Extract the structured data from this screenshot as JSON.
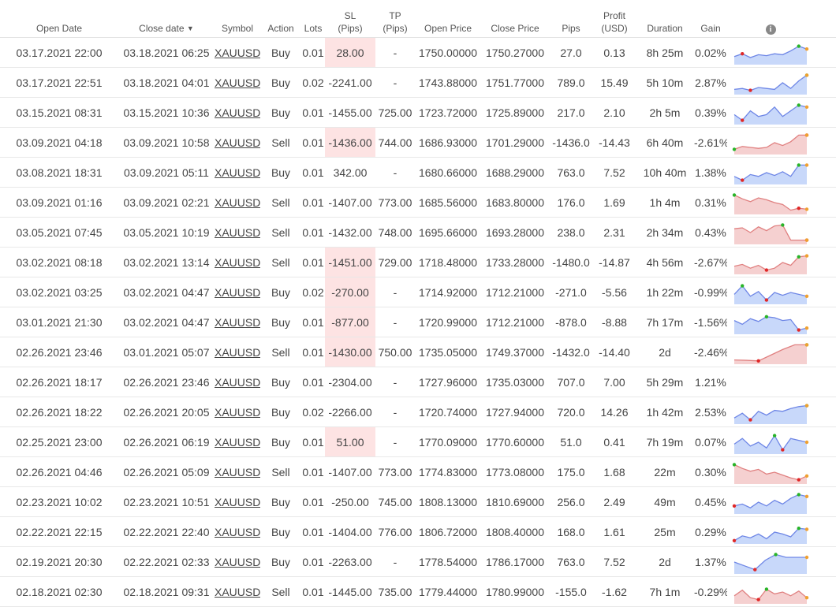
{
  "headers": {
    "open_date": "Open Date",
    "close_date": "Close date",
    "close_date_sort": "▼",
    "symbol": "Symbol",
    "action": "Action",
    "lots": "Lots",
    "sl_1": "SL",
    "sl_2": "(Pips)",
    "tp_1": "TP",
    "tp_2": "(Pips)",
    "open_price": "Open Price",
    "close_price": "Close Price",
    "pips": "Pips",
    "profit_1": "Profit",
    "profit_2": "(USD)",
    "duration": "Duration",
    "gain": "Gain",
    "info_icon": "i"
  },
  "colors": {
    "positive": "#28a028",
    "negative": "#e0403a",
    "sl_highlight": "#fde3e3",
    "buy_fill": "#c8d8fa",
    "buy_line": "#6e86e6",
    "sell_fill": "#f5d0d0",
    "sell_line": "#e08080",
    "max_dot": "#28b428",
    "min_dot": "#e02828",
    "end_dot": "#f0a030",
    "comment_icon": "#aaaaaa"
  },
  "rows": [
    {
      "open_date": "03.17.2021 22:00",
      "close_date": "03.18.2021 06:25",
      "symbol": "XAUUSD",
      "action": "Buy",
      "lots": "0.01",
      "sl": "28.00",
      "sl_hl": true,
      "tp": "-",
      "open_price": "1750.00000",
      "close_price": "1750.27000",
      "pips": "27.0",
      "profit": "0.13",
      "duration": "8h 25m",
      "gain": "0.02%",
      "sign": "pos",
      "spark": [
        30,
        45,
        25,
        40,
        35,
        45,
        40,
        60,
        85,
        70
      ],
      "spark_max": 8,
      "spark_min": 1,
      "comment": true
    },
    {
      "open_date": "03.17.2021 22:51",
      "close_date": "03.18.2021 04:01",
      "symbol": "XAUUSD",
      "action": "Buy",
      "lots": "0.02",
      "sl": "-2241.00",
      "sl_hl": false,
      "tp": "-",
      "open_price": "1743.88000",
      "close_price": "1751.77000",
      "pips": "789.0",
      "profit": "15.49",
      "duration": "5h 10m",
      "gain": "2.87%",
      "sign": "pos",
      "spark": [
        15,
        20,
        10,
        25,
        20,
        15,
        50,
        20,
        60,
        90
      ],
      "spark_max": 9,
      "spark_min": 2,
      "comment": false
    },
    {
      "open_date": "03.15.2021 08:31",
      "close_date": "03.15.2021 10:36",
      "symbol": "XAUUSD",
      "action": "Buy",
      "lots": "0.01",
      "sl": "-1455.00",
      "sl_hl": false,
      "tp": "725.00",
      "open_price": "1723.72000",
      "close_price": "1725.89000",
      "pips": "217.0",
      "profit": "2.10",
      "duration": "2h 5m",
      "gain": "0.39%",
      "sign": "pos",
      "spark": [
        40,
        10,
        60,
        30,
        40,
        80,
        30,
        60,
        90,
        80
      ],
      "spark_max": 8,
      "spark_min": 1,
      "comment": false
    },
    {
      "open_date": "03.09.2021 04:18",
      "close_date": "03.09.2021 10:58",
      "symbol": "XAUUSD",
      "action": "Sell",
      "lots": "0.01",
      "sl": "-1436.00",
      "sl_hl": true,
      "tp": "744.00",
      "open_price": "1686.93000",
      "close_price": "1701.29000",
      "pips": "-1436.0",
      "profit": "-14.43",
      "duration": "6h 40m",
      "gain": "-2.61%",
      "sign": "neg",
      "spark": [
        15,
        30,
        25,
        20,
        25,
        50,
        35,
        55,
        90,
        90
      ],
      "spark_max": 0,
      "spark_min": 9,
      "comment": true
    },
    {
      "open_date": "03.08.2021 18:31",
      "close_date": "03.09.2021 05:11",
      "symbol": "XAUUSD",
      "action": "Buy",
      "lots": "0.01",
      "sl": "342.00",
      "sl_hl": false,
      "tp": "-",
      "open_price": "1680.66000",
      "close_price": "1688.29000",
      "pips": "763.0",
      "profit": "7.52",
      "duration": "10h 40m",
      "gain": "1.38%",
      "sign": "pos",
      "spark": [
        30,
        10,
        40,
        30,
        50,
        35,
        55,
        30,
        90,
        90
      ],
      "spark_max": 8,
      "spark_min": 1,
      "comment": false
    },
    {
      "open_date": "03.09.2021 01:16",
      "close_date": "03.09.2021 02:21",
      "symbol": "XAUUSD",
      "action": "Sell",
      "lots": "0.01",
      "sl": "-1407.00",
      "sl_hl": false,
      "tp": "773.00",
      "open_price": "1685.56000",
      "close_price": "1683.80000",
      "pips": "176.0",
      "profit": "1.69",
      "duration": "1h 4m",
      "gain": "0.31%",
      "sign": "pos",
      "spark": [
        90,
        70,
        55,
        75,
        65,
        50,
        40,
        10,
        20,
        15
      ],
      "spark_max": 0,
      "spark_min": 8,
      "comment": false
    },
    {
      "open_date": "03.05.2021 07:45",
      "close_date": "03.05.2021 10:19",
      "symbol": "XAUUSD",
      "action": "Sell",
      "lots": "0.01",
      "sl": "-1432.00",
      "sl_hl": false,
      "tp": "748.00",
      "open_price": "1695.66000",
      "close_price": "1693.28000",
      "pips": "238.0",
      "profit": "2.31",
      "duration": "2h 34m",
      "gain": "0.43%",
      "sign": "pos",
      "spark": [
        70,
        75,
        50,
        80,
        60,
        85,
        90,
        10,
        10,
        10
      ],
      "spark_max": 6,
      "spark_min": 9,
      "comment": false
    },
    {
      "open_date": "03.02.2021 08:18",
      "close_date": "03.02.2021 13:14",
      "symbol": "XAUUSD",
      "action": "Sell",
      "lots": "0.01",
      "sl": "-1451.00",
      "sl_hl": true,
      "tp": "729.00",
      "open_price": "1718.48000",
      "close_price": "1733.28000",
      "pips": "-1480.0",
      "profit": "-14.87",
      "duration": "4h 56m",
      "gain": "-2.67%",
      "sign": "neg",
      "spark": [
        30,
        40,
        20,
        35,
        10,
        20,
        50,
        35,
        80,
        85
      ],
      "spark_max": 8,
      "spark_min": 4,
      "comment": true
    },
    {
      "open_date": "03.02.2021 03:25",
      "close_date": "03.02.2021 04:47",
      "symbol": "XAUUSD",
      "action": "Buy",
      "lots": "0.02",
      "sl": "-270.00",
      "sl_hl": true,
      "tp": "-",
      "open_price": "1714.92000",
      "close_price": "1712.21000",
      "pips": "-271.0",
      "profit": "-5.56",
      "duration": "1h 22m",
      "gain": "-0.99%",
      "sign": "neg",
      "spark": [
        40,
        85,
        30,
        55,
        10,
        50,
        35,
        50,
        40,
        30
      ],
      "spark_max": 1,
      "spark_min": 4,
      "comment": true
    },
    {
      "open_date": "03.01.2021 21:30",
      "close_date": "03.02.2021 04:47",
      "symbol": "XAUUSD",
      "action": "Buy",
      "lots": "0.01",
      "sl": "-877.00",
      "sl_hl": true,
      "tp": "-",
      "open_price": "1720.99000",
      "close_price": "1712.21000",
      "pips": "-878.0",
      "profit": "-8.88",
      "duration": "7h 17m",
      "gain": "-1.56%",
      "sign": "neg",
      "spark": [
        60,
        40,
        70,
        55,
        80,
        75,
        60,
        65,
        10,
        20
      ],
      "spark_max": 4,
      "spark_min": 8,
      "comment": true
    },
    {
      "open_date": "02.26.2021 23:46",
      "close_date": "03.01.2021 05:07",
      "symbol": "XAUUSD",
      "action": "Sell",
      "lots": "0.01",
      "sl": "-1430.00",
      "sl_hl": true,
      "tp": "750.00",
      "open_price": "1735.05000",
      "close_price": "1749.37000",
      "pips": "-1432.0",
      "profit": "-14.40",
      "duration": "2d",
      "gain": "-2.46%",
      "sign": "neg",
      "spark": [
        10,
        8,
        5,
        35,
        65,
        90,
        90
      ],
      "spark_max": 6,
      "spark_min": 2,
      "comment": true
    },
    {
      "open_date": "02.26.2021 18:17",
      "close_date": "02.26.2021 23:46",
      "symbol": "XAUUSD",
      "action": "Buy",
      "lots": "0.01",
      "sl": "-2304.00",
      "sl_hl": false,
      "tp": "-",
      "open_price": "1727.96000",
      "close_price": "1735.03000",
      "pips": "707.0",
      "profit": "7.00",
      "duration": "5h 29m",
      "gain": "1.21%",
      "sign": "pos",
      "spark": [],
      "spark_max": -1,
      "spark_min": -1,
      "comment": false
    },
    {
      "open_date": "02.26.2021 18:22",
      "close_date": "02.26.2021 20:05",
      "symbol": "XAUUSD",
      "action": "Buy",
      "lots": "0.02",
      "sl": "-2266.00",
      "sl_hl": false,
      "tp": "-",
      "open_price": "1720.74000",
      "close_price": "1727.94000",
      "pips": "720.0",
      "profit": "14.26",
      "duration": "1h 42m",
      "gain": "2.53%",
      "sign": "pos",
      "spark": [
        20,
        45,
        10,
        55,
        35,
        60,
        55,
        70,
        80,
        85
      ],
      "spark_max": 9,
      "spark_min": 2,
      "comment": false
    },
    {
      "open_date": "02.25.2021 23:00",
      "close_date": "02.26.2021 06:19",
      "symbol": "XAUUSD",
      "action": "Buy",
      "lots": "0.01",
      "sl": "51.00",
      "sl_hl": true,
      "tp": "-",
      "open_price": "1770.09000",
      "close_price": "1770.60000",
      "pips": "51.0",
      "profit": "0.41",
      "duration": "7h 19m",
      "gain": "0.07%",
      "sign": "pos",
      "spark": [
        40,
        70,
        30,
        50,
        20,
        85,
        10,
        70,
        60,
        50
      ],
      "spark_max": 5,
      "spark_min": 6,
      "comment": true
    },
    {
      "open_date": "02.26.2021 04:46",
      "close_date": "02.26.2021 05:09",
      "symbol": "XAUUSD",
      "action": "Sell",
      "lots": "0.01",
      "sl": "-1407.00",
      "sl_hl": false,
      "tp": "773.00",
      "open_price": "1774.83000",
      "close_price": "1773.08000",
      "pips": "175.0",
      "profit": "1.68",
      "duration": "22m",
      "gain": "0.30%",
      "sign": "pos",
      "spark": [
        90,
        70,
        55,
        65,
        40,
        50,
        35,
        20,
        10,
        30
      ],
      "spark_max": 0,
      "spark_min": 8,
      "comment": false
    },
    {
      "open_date": "02.23.2021 10:02",
      "close_date": "02.23.2021 10:51",
      "symbol": "XAUUSD",
      "action": "Buy",
      "lots": "0.01",
      "sl": "-250.00",
      "sl_hl": false,
      "tp": "745.00",
      "open_price": "1808.13000",
      "close_price": "1810.69000",
      "pips": "256.0",
      "profit": "2.49",
      "duration": "49m",
      "gain": "0.45%",
      "sign": "pos",
      "spark": [
        30,
        40,
        20,
        50,
        30,
        60,
        40,
        70,
        90,
        80
      ],
      "spark_max": 8,
      "spark_min": 0,
      "comment": false
    },
    {
      "open_date": "02.22.2021 22:15",
      "close_date": "02.22.2021 22:40",
      "symbol": "XAUUSD",
      "action": "Buy",
      "lots": "0.01",
      "sl": "-1404.00",
      "sl_hl": false,
      "tp": "776.00",
      "open_price": "1806.72000",
      "close_price": "1808.40000",
      "pips": "168.0",
      "profit": "1.61",
      "duration": "25m",
      "gain": "0.29%",
      "sign": "pos",
      "spark": [
        5,
        30,
        20,
        40,
        15,
        50,
        40,
        25,
        70,
        65
      ],
      "spark_max": 8,
      "spark_min": 0,
      "comment": false
    },
    {
      "open_date": "02.19.2021 20:30",
      "close_date": "02.22.2021 02:33",
      "symbol": "XAUUSD",
      "action": "Buy",
      "lots": "0.01",
      "sl": "-2263.00",
      "sl_hl": false,
      "tp": "-",
      "open_price": "1778.54000",
      "close_price": "1786.17000",
      "pips": "763.0",
      "profit": "7.52",
      "duration": "2d",
      "gain": "1.37%",
      "sign": "pos",
      "spark": [
        50,
        30,
        10,
        60,
        90,
        75,
        75,
        75
      ],
      "spark_max": 4,
      "spark_min": 2,
      "comment": false
    },
    {
      "open_date": "02.18.2021 02:30",
      "close_date": "02.18.2021 09:31",
      "symbol": "XAUUSD",
      "action": "Sell",
      "lots": "0.01",
      "sl": "-1445.00",
      "sl_hl": false,
      "tp": "735.00",
      "open_price": "1779.44000",
      "close_price": "1780.99000",
      "pips": "-155.0",
      "profit": "-1.62",
      "duration": "7h 1m",
      "gain": "-0.29%",
      "sign": "neg",
      "spark": [
        30,
        60,
        20,
        10,
        65,
        40,
        50,
        30,
        55,
        20
      ],
      "spark_max": 4,
      "spark_min": 3,
      "comment": false
    }
  ]
}
